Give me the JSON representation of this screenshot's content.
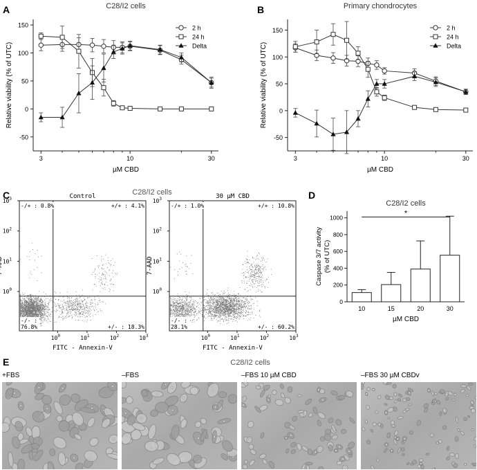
{
  "panels": {
    "A": {
      "letter": "A",
      "title": "C28/I2 cells"
    },
    "B": {
      "letter": "B",
      "title": "Primary chondrocytes"
    },
    "C": {
      "letter": "C",
      "title": "C28/I2 cells",
      "plots": [
        {
          "label": "Control",
          "quadrants": {
            "ul": "-/+ : 0.8%",
            "ur": "+/+ : 4.1%",
            "ll1": "-/- :",
            "ll2": "76.8%",
            "lr": "+/- : 18.3%"
          }
        },
        {
          "label": "30 µM CBD",
          "quadrants": {
            "ul": "-/+ : 1.0%",
            "ur": "+/+ : 10.8%",
            "ll1": "-/- :",
            "ll2": "28.1%",
            "lr": "+/- : 60.2%"
          }
        }
      ],
      "xlabel": "FITC - Annexin-V",
      "ylabel": "7-AAD",
      "tick_base": "10",
      "tick_exponents": [
        "0",
        "1",
        "2",
        "3"
      ]
    },
    "D": {
      "letter": "D",
      "title": "C28/I2 cells",
      "significance": "*"
    },
    "E": {
      "letter": "E",
      "title": "C28/I2 cells",
      "images": [
        {
          "label": "+FBS",
          "density": "high"
        },
        {
          "label": "–FBS",
          "density": "high"
        },
        {
          "label": "–FBS 10 µM CBD",
          "density": "medium"
        },
        {
          "label": "–FBS 30 µM CBDv",
          "density": "low"
        }
      ]
    }
  },
  "chart_data": [
    {
      "panel": "A",
      "type": "line",
      "title": "C28/I2 cells",
      "xlabel": "µM CBD",
      "ylabel": "Relative viability (% of UTC)",
      "xscale": "log",
      "xticks": [
        3,
        10,
        30
      ],
      "xlim": [
        2.7,
        33
      ],
      "yticks": [
        -50,
        0,
        50,
        100,
        150
      ],
      "ylim": [
        -75,
        160
      ],
      "legend": "top-right",
      "x": [
        3,
        4,
        5,
        6,
        7,
        8,
        9,
        10,
        15,
        20,
        30
      ],
      "series": [
        {
          "name": "2 h",
          "marker": "circle",
          "values": [
            114,
            115,
            115,
            114,
            112,
            110,
            110,
            112,
            105,
            88,
            47
          ],
          "errors": [
            10,
            12,
            12,
            12,
            12,
            12,
            10,
            8,
            8,
            8,
            8
          ]
        },
        {
          "name": "24 h",
          "marker": "square",
          "values": [
            130,
            128,
            103,
            65,
            38,
            10,
            2,
            1,
            0,
            0,
            0
          ],
          "errors": [
            6,
            20,
            30,
            25,
            15,
            5,
            3,
            2,
            2,
            2,
            2
          ]
        },
        {
          "name": "Delta",
          "marker": "triangle",
          "values": [
            -15,
            -15,
            28,
            47,
            73,
            102,
            108,
            113,
            106,
            92,
            47
          ],
          "errors": [
            8,
            18,
            35,
            30,
            25,
            12,
            10,
            8,
            8,
            8,
            10
          ]
        }
      ]
    },
    {
      "panel": "B",
      "type": "line",
      "title": "Primary chondrocytes",
      "xlabel": "µM CBD",
      "ylabel": "Relative viability (% of UTC)",
      "xscale": "log",
      "xticks": [
        3,
        10,
        30
      ],
      "xlim": [
        2.7,
        33
      ],
      "yticks": [
        -50,
        0,
        50,
        100,
        150
      ],
      "ylim": [
        -75,
        170
      ],
      "legend": "top-right",
      "x": [
        3,
        4,
        5,
        6,
        7,
        8,
        9,
        10,
        15,
        20,
        30
      ],
      "series": [
        {
          "name": "2 h",
          "marker": "circle",
          "values": [
            117,
            103,
            98,
            93,
            92,
            88,
            85,
            74,
            70,
            55,
            35
          ],
          "errors": [
            8,
            10,
            10,
            10,
            10,
            10,
            8,
            6,
            8,
            8,
            5
          ]
        },
        {
          "name": "24 h",
          "marker": "square",
          "values": [
            119,
            128,
            142,
            131,
            107,
            77,
            35,
            24,
            6,
            2,
            1
          ],
          "errors": [
            10,
            22,
            20,
            35,
            12,
            15,
            8,
            5,
            3,
            2,
            2
          ]
        },
        {
          "name": "Delta",
          "marker": "triangle",
          "values": [
            -4,
            -24,
            -44,
            -40,
            -15,
            22,
            50,
            50,
            64,
            53,
            35
          ],
          "errors": [
            8,
            25,
            30,
            40,
            15,
            15,
            8,
            8,
            8,
            8,
            5
          ]
        }
      ]
    },
    {
      "panel": "C",
      "type": "scatter",
      "xscale": "log",
      "yscale": "log",
      "xlim": [
        0.05,
        1000
      ],
      "ylim": [
        0.05,
        1000
      ],
      "plots": [
        {
          "label": "Control",
          "gate_x": 0.7,
          "gate_y": 0.7,
          "quadrants_percent": {
            "upper_left": 0.8,
            "upper_right": 4.1,
            "lower_left": 76.8,
            "lower_right": 18.3
          }
        },
        {
          "label": "30 µM CBD",
          "gate_x": 0.7,
          "gate_y": 0.7,
          "quadrants_percent": {
            "upper_left": 1.0,
            "upper_right": 10.8,
            "lower_left": 28.1,
            "lower_right": 60.2
          }
        }
      ]
    },
    {
      "panel": "D",
      "type": "bar",
      "title": "C28/I2 cells",
      "xlabel": "µM CBD",
      "ylabel": "Caspase 3/7 activity\n(% of UTC)",
      "categories": [
        "10",
        "15",
        "20",
        "30"
      ],
      "values": [
        110,
        205,
        390,
        555
      ],
      "errors": [
        35,
        145,
        335,
        465
      ],
      "yticks": [
        0,
        200,
        400,
        600,
        800,
        1000
      ],
      "ylim": [
        0,
        1080
      ],
      "significance": {
        "from": "10",
        "to": "30",
        "label": "*"
      }
    }
  ]
}
